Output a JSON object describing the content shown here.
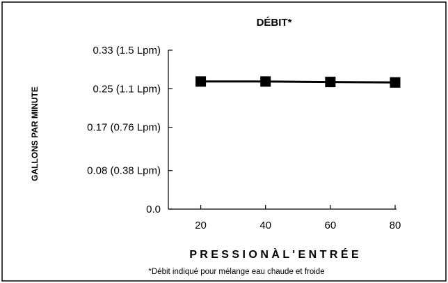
{
  "chart_data": {
    "type": "line",
    "title": "DÉBIT*",
    "xlabel": "P R E S S I O N À L ' E N T R É E",
    "ylabel": "GALLONS PAR MINUTE",
    "footnote": "*Débit indiqué pour mélange eau chaude et froide",
    "x_ticks": [
      20,
      40,
      60,
      80
    ],
    "y_ticks": [
      {
        "value": 0.0,
        "label": "0.0"
      },
      {
        "value": 0.08,
        "label": "0.08 (0.38 Lpm)"
      },
      {
        "value": 0.17,
        "label": "0.17 (0.76 Lpm)"
      },
      {
        "value": 0.25,
        "label": "0.25 (1.1 Lpm)"
      },
      {
        "value": 0.33,
        "label": "0.33 (1.5 Lpm)"
      }
    ],
    "xlim": [
      10,
      80
    ],
    "ylim": [
      0,
      0.33
    ],
    "grid": false,
    "series": [
      {
        "x": [
          20,
          40,
          60,
          80
        ],
        "values": [
          0.265,
          0.265,
          0.264,
          0.263
        ],
        "color": "#000000",
        "marker": "square"
      }
    ]
  }
}
